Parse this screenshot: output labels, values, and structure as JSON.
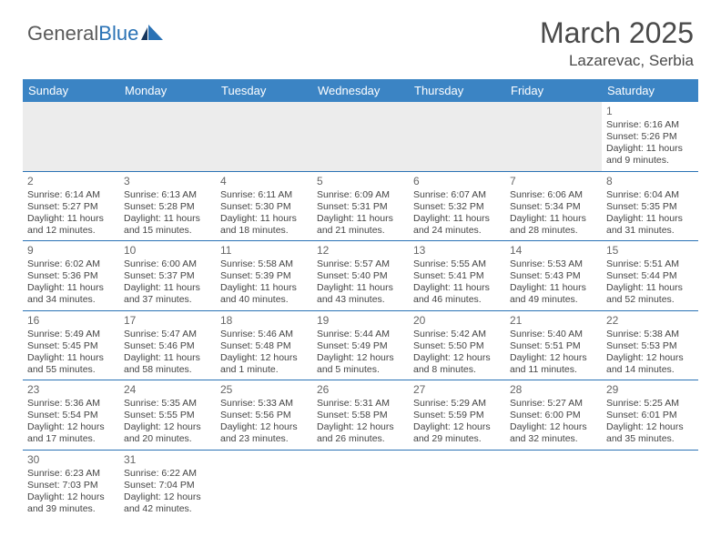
{
  "logo": {
    "text_part1": "General",
    "text_part2": "Blue",
    "accent_color": "#2a72b5"
  },
  "header": {
    "title": "March 2025",
    "location": "Lazarevac, Serbia"
  },
  "calendar": {
    "header_bg": "#3b84c4",
    "header_fg": "#ffffff",
    "border_color": "#2a72b5",
    "day_headers": [
      "Sunday",
      "Monday",
      "Tuesday",
      "Wednesday",
      "Thursday",
      "Friday",
      "Saturday"
    ],
    "weeks": [
      [
        null,
        null,
        null,
        null,
        null,
        null,
        {
          "n": "1",
          "sunrise": "Sunrise: 6:16 AM",
          "sunset": "Sunset: 5:26 PM",
          "daylight": "Daylight: 11 hours and 9 minutes."
        }
      ],
      [
        {
          "n": "2",
          "sunrise": "Sunrise: 6:14 AM",
          "sunset": "Sunset: 5:27 PM",
          "daylight": "Daylight: 11 hours and 12 minutes."
        },
        {
          "n": "3",
          "sunrise": "Sunrise: 6:13 AM",
          "sunset": "Sunset: 5:28 PM",
          "daylight": "Daylight: 11 hours and 15 minutes."
        },
        {
          "n": "4",
          "sunrise": "Sunrise: 6:11 AM",
          "sunset": "Sunset: 5:30 PM",
          "daylight": "Daylight: 11 hours and 18 minutes."
        },
        {
          "n": "5",
          "sunrise": "Sunrise: 6:09 AM",
          "sunset": "Sunset: 5:31 PM",
          "daylight": "Daylight: 11 hours and 21 minutes."
        },
        {
          "n": "6",
          "sunrise": "Sunrise: 6:07 AM",
          "sunset": "Sunset: 5:32 PM",
          "daylight": "Daylight: 11 hours and 24 minutes."
        },
        {
          "n": "7",
          "sunrise": "Sunrise: 6:06 AM",
          "sunset": "Sunset: 5:34 PM",
          "daylight": "Daylight: 11 hours and 28 minutes."
        },
        {
          "n": "8",
          "sunrise": "Sunrise: 6:04 AM",
          "sunset": "Sunset: 5:35 PM",
          "daylight": "Daylight: 11 hours and 31 minutes."
        }
      ],
      [
        {
          "n": "9",
          "sunrise": "Sunrise: 6:02 AM",
          "sunset": "Sunset: 5:36 PM",
          "daylight": "Daylight: 11 hours and 34 minutes."
        },
        {
          "n": "10",
          "sunrise": "Sunrise: 6:00 AM",
          "sunset": "Sunset: 5:37 PM",
          "daylight": "Daylight: 11 hours and 37 minutes."
        },
        {
          "n": "11",
          "sunrise": "Sunrise: 5:58 AM",
          "sunset": "Sunset: 5:39 PM",
          "daylight": "Daylight: 11 hours and 40 minutes."
        },
        {
          "n": "12",
          "sunrise": "Sunrise: 5:57 AM",
          "sunset": "Sunset: 5:40 PM",
          "daylight": "Daylight: 11 hours and 43 minutes."
        },
        {
          "n": "13",
          "sunrise": "Sunrise: 5:55 AM",
          "sunset": "Sunset: 5:41 PM",
          "daylight": "Daylight: 11 hours and 46 minutes."
        },
        {
          "n": "14",
          "sunrise": "Sunrise: 5:53 AM",
          "sunset": "Sunset: 5:43 PM",
          "daylight": "Daylight: 11 hours and 49 minutes."
        },
        {
          "n": "15",
          "sunrise": "Sunrise: 5:51 AM",
          "sunset": "Sunset: 5:44 PM",
          "daylight": "Daylight: 11 hours and 52 minutes."
        }
      ],
      [
        {
          "n": "16",
          "sunrise": "Sunrise: 5:49 AM",
          "sunset": "Sunset: 5:45 PM",
          "daylight": "Daylight: 11 hours and 55 minutes."
        },
        {
          "n": "17",
          "sunrise": "Sunrise: 5:47 AM",
          "sunset": "Sunset: 5:46 PM",
          "daylight": "Daylight: 11 hours and 58 minutes."
        },
        {
          "n": "18",
          "sunrise": "Sunrise: 5:46 AM",
          "sunset": "Sunset: 5:48 PM",
          "daylight": "Daylight: 12 hours and 1 minute."
        },
        {
          "n": "19",
          "sunrise": "Sunrise: 5:44 AM",
          "sunset": "Sunset: 5:49 PM",
          "daylight": "Daylight: 12 hours and 5 minutes."
        },
        {
          "n": "20",
          "sunrise": "Sunrise: 5:42 AM",
          "sunset": "Sunset: 5:50 PM",
          "daylight": "Daylight: 12 hours and 8 minutes."
        },
        {
          "n": "21",
          "sunrise": "Sunrise: 5:40 AM",
          "sunset": "Sunset: 5:51 PM",
          "daylight": "Daylight: 12 hours and 11 minutes."
        },
        {
          "n": "22",
          "sunrise": "Sunrise: 5:38 AM",
          "sunset": "Sunset: 5:53 PM",
          "daylight": "Daylight: 12 hours and 14 minutes."
        }
      ],
      [
        {
          "n": "23",
          "sunrise": "Sunrise: 5:36 AM",
          "sunset": "Sunset: 5:54 PM",
          "daylight": "Daylight: 12 hours and 17 minutes."
        },
        {
          "n": "24",
          "sunrise": "Sunrise: 5:35 AM",
          "sunset": "Sunset: 5:55 PM",
          "daylight": "Daylight: 12 hours and 20 minutes."
        },
        {
          "n": "25",
          "sunrise": "Sunrise: 5:33 AM",
          "sunset": "Sunset: 5:56 PM",
          "daylight": "Daylight: 12 hours and 23 minutes."
        },
        {
          "n": "26",
          "sunrise": "Sunrise: 5:31 AM",
          "sunset": "Sunset: 5:58 PM",
          "daylight": "Daylight: 12 hours and 26 minutes."
        },
        {
          "n": "27",
          "sunrise": "Sunrise: 5:29 AM",
          "sunset": "Sunset: 5:59 PM",
          "daylight": "Daylight: 12 hours and 29 minutes."
        },
        {
          "n": "28",
          "sunrise": "Sunrise: 5:27 AM",
          "sunset": "Sunset: 6:00 PM",
          "daylight": "Daylight: 12 hours and 32 minutes."
        },
        {
          "n": "29",
          "sunrise": "Sunrise: 5:25 AM",
          "sunset": "Sunset: 6:01 PM",
          "daylight": "Daylight: 12 hours and 35 minutes."
        }
      ],
      [
        {
          "n": "30",
          "sunrise": "Sunrise: 6:23 AM",
          "sunset": "Sunset: 7:03 PM",
          "daylight": "Daylight: 12 hours and 39 minutes."
        },
        {
          "n": "31",
          "sunrise": "Sunrise: 6:22 AM",
          "sunset": "Sunset: 7:04 PM",
          "daylight": "Daylight: 12 hours and 42 minutes."
        },
        null,
        null,
        null,
        null,
        null
      ]
    ]
  }
}
